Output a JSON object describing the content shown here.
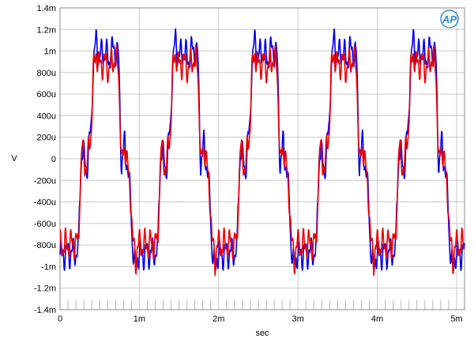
{
  "chart_data": {
    "type": "line",
    "title": "",
    "xlabel": "sec",
    "ylabel": "V",
    "xlim": [
      0,
      0.0051
    ],
    "ylim": [
      -0.0014,
      0.0014
    ],
    "grid": true,
    "x_ticks": [
      {
        "value": 0,
        "label": "0"
      },
      {
        "value": 0.001,
        "label": "1m"
      },
      {
        "value": 0.002,
        "label": "2m"
      },
      {
        "value": 0.003,
        "label": "3m"
      },
      {
        "value": 0.004,
        "label": "4m"
      },
      {
        "value": 0.005,
        "label": "5m"
      }
    ],
    "y_ticks": [
      {
        "value": 0.0014,
        "label": "1.4m"
      },
      {
        "value": 0.0012,
        "label": "1.2m"
      },
      {
        "value": 0.001,
        "label": "1m"
      },
      {
        "value": 0.0008,
        "label": "800u"
      },
      {
        "value": 0.0006,
        "label": "600u"
      },
      {
        "value": 0.0004,
        "label": "400u"
      },
      {
        "value": 0.0002,
        "label": "200u"
      },
      {
        "value": 0,
        "label": "0"
      },
      {
        "value": -0.0002,
        "label": "-200u"
      },
      {
        "value": -0.0004,
        "label": "-400u"
      },
      {
        "value": -0.0006,
        "label": "-600u"
      },
      {
        "value": -0.0008,
        "label": "-800u"
      },
      {
        "value": -0.001,
        "label": "-1m"
      },
      {
        "value": -0.0012,
        "label": "-1.2m"
      },
      {
        "value": -0.0014,
        "label": "-1.4m"
      }
    ],
    "period": 0.001,
    "phase_points": [
      [
        0.0,
        -0.00085
      ],
      [
        0.26,
        -0.00082
      ],
      [
        0.27,
        -0.0004
      ],
      [
        0.3,
        0.0001
      ],
      [
        0.36,
        -0.0001
      ],
      [
        0.42,
        0.0003
      ],
      [
        0.44,
        0.0008
      ],
      [
        0.48,
        0.00105
      ],
      [
        0.52,
        0.0009
      ],
      [
        0.58,
        0.00095
      ],
      [
        0.64,
        0.00088
      ],
      [
        0.7,
        0.00098
      ],
      [
        0.76,
        0.00092
      ],
      [
        0.78,
        0.0005
      ],
      [
        0.8,
        -0.0001
      ],
      [
        0.84,
        0.00015
      ],
      [
        0.88,
        -0.0001
      ],
      [
        0.92,
        -0.0004
      ],
      [
        0.94,
        -0.0008
      ],
      [
        0.98,
        -0.001
      ],
      [
        1.0,
        -0.00085
      ]
    ],
    "series": [
      {
        "color": "#0000ee",
        "amplitude_scale": 1.05,
        "spike": 1.25
      },
      {
        "color": "#ee0000",
        "amplitude_scale": 0.95,
        "spike": 1.15
      }
    ]
  },
  "logo": {
    "text": "AP",
    "color": "#2f8fd8"
  }
}
